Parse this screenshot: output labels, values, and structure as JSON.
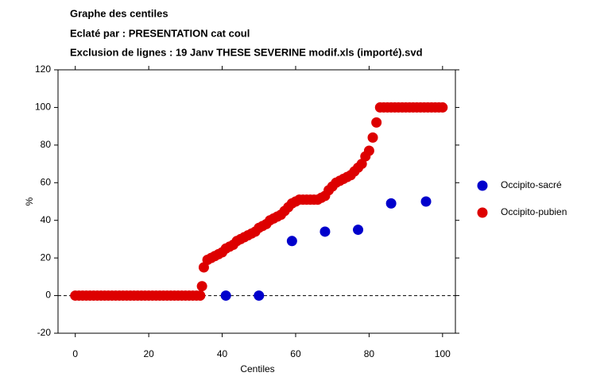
{
  "chart_data": {
    "type": "scatter",
    "title_lines": [
      "Graphe des centiles",
      "Eclaté par : PRESENTATION cat coul",
      "Exclusion de lignes : 19 Janv THESE SEVERINE modif.xls (importé).svd"
    ],
    "x_label": "Centiles",
    "y_label": "%",
    "xlim": [
      -4.7,
      103.5
    ],
    "ylim": [
      -20,
      120
    ],
    "xticks": [
      0,
      20,
      40,
      60,
      80,
      100
    ],
    "yticks": [
      -20,
      0,
      20,
      40,
      60,
      80,
      100,
      120
    ],
    "hline": 0,
    "legend": "right",
    "series": [
      {
        "name": "Occipito-sacré",
        "color": "#0000cc",
        "x": [
          41,
          50,
          59,
          68,
          77,
          86,
          95.5
        ],
        "values": [
          0,
          0,
          29,
          34,
          35,
          49,
          50
        ]
      },
      {
        "name": "Occipito-pubien",
        "color": "#dd0000",
        "x": [
          0,
          1,
          2,
          3,
          4,
          5,
          6,
          7,
          8,
          9,
          10,
          11,
          12,
          13,
          14,
          15,
          16,
          17,
          18,
          19,
          20,
          21,
          22,
          23,
          24,
          25,
          26,
          27,
          28,
          29,
          30,
          31,
          32,
          33,
          34,
          34.5,
          35,
          36,
          37,
          38,
          39,
          40,
          41,
          42,
          43,
          44,
          45,
          46,
          47,
          48,
          49,
          50,
          51,
          52,
          53,
          54,
          55,
          56,
          57,
          58,
          59,
          60,
          61,
          62,
          63,
          64,
          65,
          66,
          67,
          68,
          69,
          70,
          71,
          72,
          73,
          74,
          75,
          76,
          77,
          78,
          79,
          80,
          81,
          82,
          83,
          84,
          85,
          86,
          87,
          88,
          89,
          90,
          91,
          92,
          93,
          94,
          95,
          96,
          97,
          98,
          99,
          100
        ],
        "values": [
          0,
          0,
          0,
          0,
          0,
          0,
          0,
          0,
          0,
          0,
          0,
          0,
          0,
          0,
          0,
          0,
          0,
          0,
          0,
          0,
          0,
          0,
          0,
          0,
          0,
          0,
          0,
          0,
          0,
          0,
          0,
          0,
          0,
          0,
          0,
          5,
          15,
          19,
          20,
          21,
          22,
          23,
          25,
          26,
          27,
          29,
          30,
          31,
          32,
          33,
          34,
          36,
          37,
          38,
          40,
          41,
          42,
          43,
          45,
          47,
          49,
          50,
          51,
          51,
          51,
          51,
          51,
          51,
          52,
          53,
          56,
          58,
          60,
          61,
          62,
          63,
          64,
          66,
          68,
          70,
          74,
          77,
          84,
          92,
          100,
          100,
          100,
          100,
          100,
          100,
          100,
          100,
          100,
          100,
          100,
          100,
          100,
          100,
          100,
          100,
          100,
          100
        ]
      }
    ]
  }
}
